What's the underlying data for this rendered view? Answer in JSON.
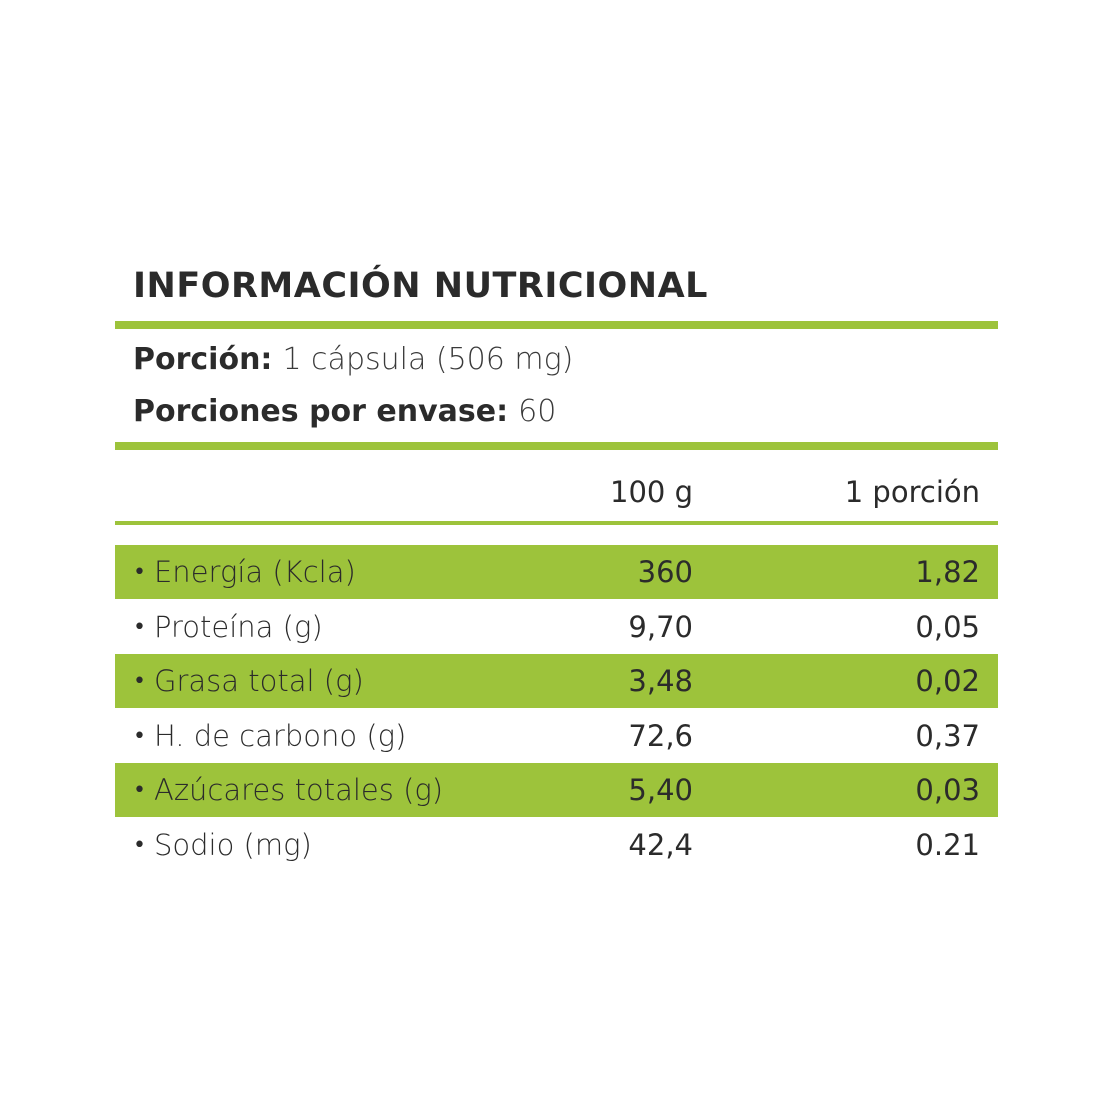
{
  "header": {
    "title": "INFORMACIÓN NUTRICIONAL"
  },
  "serving": [
    {
      "label": "Porción:",
      "value": "1 cápsula (506 mg)"
    },
    {
      "label": "Porciones por envase:",
      "value": "60"
    }
  ],
  "table": {
    "columns": [
      "100 g",
      "1 porción"
    ],
    "rows": [
      [
        "Energía (Kcla)",
        "360",
        "1,82"
      ],
      [
        "Proteína (g)",
        "9,70",
        "0,05"
      ],
      [
        "Grasa total (g)",
        "3,48",
        "0,02"
      ],
      [
        "H. de carbono (g)",
        "72,6",
        "0,37"
      ],
      [
        "Azúcares totales (g)",
        "5,40",
        "0,03"
      ],
      [
        "Sodio (mg)",
        "42,4",
        "0.21"
      ]
    ]
  }
}
